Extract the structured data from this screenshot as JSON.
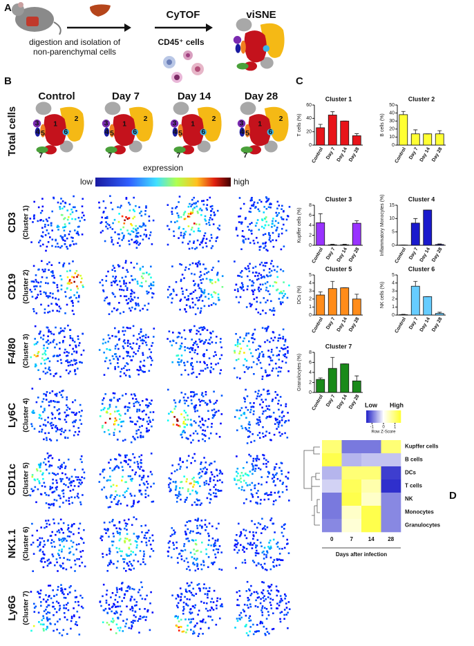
{
  "panel_a": {
    "label": "A",
    "step1": [
      "digestion and isolation of",
      "non-parenchymal cells"
    ],
    "step2": "CyTOF",
    "step2_sub": "CD45⁺ cells",
    "step3": "viSNE"
  },
  "panel_b": {
    "label": "B",
    "columns": [
      "Control",
      "Day 7",
      "Day 14",
      "Day 28"
    ],
    "total_row": "Total cells",
    "cluster_numbers": [
      "1",
      "2",
      "3",
      "4",
      "5",
      "6",
      "7"
    ],
    "colorbar": {
      "title": "expression",
      "low": "low",
      "high": "high"
    },
    "rows": [
      {
        "marker": "CD3",
        "cluster": "(Cluster 1)"
      },
      {
        "marker": "CD19",
        "cluster": "(Cluster 2)"
      },
      {
        "marker": "F4/80",
        "cluster": "(Cluster 3)"
      },
      {
        "marker": "Ly6C",
        "cluster": "(Cluster 4)"
      },
      {
        "marker": "CD11c",
        "cluster": "(Cluster 5)"
      },
      {
        "marker": "NK1.1",
        "cluster": "(Cluster 6)"
      },
      {
        "marker": "Ly6G",
        "cluster": "(Cluster 7)"
      }
    ]
  },
  "panel_labels": {
    "c": "C",
    "d": "D"
  },
  "chart_data": [
    {
      "type": "bar",
      "title": "Cluster 1",
      "ylabel": "T cells (%)",
      "categories": [
        "Control",
        "Day 7",
        "Day 14",
        "Day 28"
      ],
      "values": [
        26,
        45,
        36,
        14
      ],
      "errors": [
        5,
        5,
        0,
        3
      ],
      "color": "#e8141a",
      "ylim": [
        0,
        60
      ],
      "yticks": [
        0,
        20,
        40,
        60
      ]
    },
    {
      "type": "bar",
      "title": "Cluster 2",
      "ylabel": "B cells (%)",
      "categories": [
        "Control",
        "Day 7",
        "Day 14",
        "Day 28"
      ],
      "values": [
        38,
        14,
        14,
        14
      ],
      "errors": [
        4,
        5,
        0,
        4
      ],
      "color": "#ffff33",
      "ylim": [
        0,
        50
      ],
      "yticks": [
        0,
        10,
        20,
        30,
        40,
        50
      ]
    },
    {
      "type": "bar",
      "title": "Cluster 3",
      "ylabel": "Kupffer cells (%)",
      "categories": [
        "Control",
        "Day 7",
        "Day 14",
        "Day 28"
      ],
      "values": [
        4.5,
        0.1,
        0.1,
        4.4
      ],
      "errors": [
        1.8,
        0.1,
        0.1,
        0.5
      ],
      "color": "#9933ff",
      "ylim": [
        0,
        8
      ],
      "yticks": [
        0,
        2,
        4,
        6,
        8
      ]
    },
    {
      "type": "bar",
      "title": "Cluster 4",
      "ylabel": "Inflammatory Monocytes (%)",
      "categories": [
        "Control",
        "Day 7",
        "Day 14",
        "Day 28"
      ],
      "values": [
        0.1,
        8.3,
        13.2,
        0.3
      ],
      "errors": [
        0,
        1.7,
        0,
        0.2
      ],
      "color": "#1a1acc",
      "ylim": [
        0,
        15
      ],
      "yticks": [
        0,
        5,
        10,
        15
      ]
    },
    {
      "type": "bar",
      "title": "Cluster 5",
      "ylabel": "DCs (%)",
      "categories": [
        "Control",
        "Day 7",
        "Day 14",
        "Day 28"
      ],
      "values": [
        2.5,
        3.3,
        3.4,
        2.0
      ],
      "errors": [
        0.4,
        0.9,
        0,
        0.6
      ],
      "color": "#ff8c1a",
      "ylim": [
        0,
        5
      ],
      "yticks": [
        0,
        1,
        2,
        3,
        4,
        5
      ]
    },
    {
      "type": "bar",
      "title": "Cluster 6",
      "ylabel": "NK cells (%)",
      "categories": [
        "Control",
        "Day 7",
        "Day 14",
        "Day 28"
      ],
      "values": [
        0.05,
        3.6,
        2.3,
        0.2
      ],
      "errors": [
        0.05,
        0.6,
        0,
        0.15
      ],
      "color": "#66ccff",
      "ylim": [
        0,
        5
      ],
      "yticks": [
        0,
        1,
        2,
        3,
        4,
        5
      ]
    },
    {
      "type": "bar",
      "title": "Cluster 7",
      "ylabel": "Granulocytes (%)",
      "categories": [
        "Control",
        "Day 7",
        "Day 14",
        "Day 28"
      ],
      "values": [
        2.6,
        4.8,
        5.7,
        2.3
      ],
      "errors": [
        0.3,
        2.2,
        0,
        1.0
      ],
      "color": "#1a8a1a",
      "ylim": [
        0,
        8
      ],
      "yticks": [
        0,
        2,
        4,
        6,
        8
      ]
    },
    {
      "type": "heatmap",
      "categories": [
        "0",
        "7",
        "14",
        "28"
      ],
      "rows": [
        "Kupffer cells",
        "B cells",
        "DCs",
        "T cells",
        "NK",
        "Monocytes",
        "Granulocytes"
      ],
      "values": [
        [
          1.0,
          -0.9,
          -0.9,
          1.0
        ],
        [
          1.3,
          -0.5,
          -0.4,
          -0.4
        ],
        [
          -0.5,
          1.0,
          1.0,
          -1.3
        ],
        [
          -0.3,
          1.2,
          0.6,
          -1.4
        ],
        [
          -0.9,
          1.3,
          0.4,
          -0.8
        ],
        [
          -0.9,
          0.4,
          1.3,
          -0.8
        ],
        [
          -0.8,
          0.3,
          1.3,
          -0.8
        ]
      ],
      "xlabel": "Days after infection",
      "colorbar": {
        "low": "Low",
        "high": "High",
        "title": "Row Z-Score",
        "zlim": [
          -1.5,
          1.5
        ],
        "ticks": [
          -1,
          0,
          1
        ]
      },
      "colors": [
        "#2020c8",
        "#ffffff",
        "#ffff30"
      ]
    }
  ]
}
